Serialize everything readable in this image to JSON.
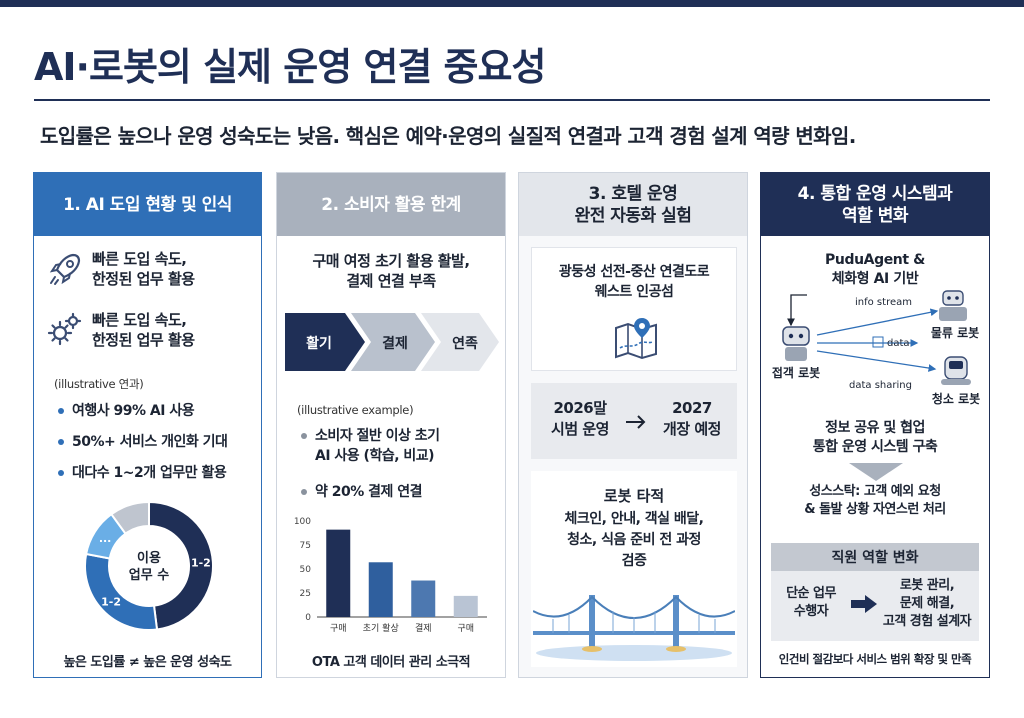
{
  "title": "AI·로봇의 실제 운영 연결 중요성",
  "subtitle": "도입률은 높으나 운영 성숙도는 낮음. 핵심은 예약·운영의 실질적 연결과 고객 경험 설계 역량 변화임.",
  "colors": {
    "navy": "#1f2f56",
    "blue": "#2f6fb7",
    "gray_header": "#a9b1bd",
    "light_header": "#e3e6eb"
  },
  "panels": [
    {
      "header": "1. AI 도입 현황 및 인식",
      "features": [
        {
          "icon": "rocket-icon",
          "text": "빠른 도입 속도,\n한정된 업무 활용"
        },
        {
          "icon": "gears-icon",
          "text": "빠른 도입 속도,\n한정된 업무 활용"
        }
      ],
      "note": "(illustrative 연과)",
      "bullets": [
        "여행사 99% AI 사용",
        "50%+ 서비스 개인화 기대",
        "대다수 1~2개 업무만 활용"
      ],
      "donut_center": "이용\n업무 수",
      "footer": "높은 도입률 ≠ 높은 운영 성숙도"
    },
    {
      "header": "2. 소비자 활용 한계",
      "lead": "구매 여정 초기 활용 활발,\n결제 연결 부족",
      "stages": [
        "활기",
        "결제",
        "연족"
      ],
      "note": "(illustrative example)",
      "bullets": [
        "소비자 절반 이상 초기\nAI 사용 (학습, 비교)",
        "약 20% 결제 연결"
      ],
      "footer": "OTA 고객 데이터 관리 소극적"
    },
    {
      "header": "3. 호텔 운영\n완전 자동화 실험",
      "site": "광둥성 선전-중산 연결도로\n웨스트 인공섬",
      "timeline_from": "2026말\n시범 운영",
      "timeline_to": "2027\n개장 예정",
      "arrow_icon": "right-arrow-icon",
      "scope_title": "로봇 타적",
      "scope_body": "체크인, 안내, 객실 배달,\n청소, 식음 준비 전 과정\n검증"
    },
    {
      "header": "4. 통합 운영 시스템과\n역할 변화",
      "platform": "PuduAgent &\n체화형 AI 기반",
      "labels": {
        "info_stream": "info stream",
        "data": "data",
        "data_sharing": "data sharing",
        "logistics_robot": "물류 로봇",
        "reception_robot": "접객 로봇",
        "cleaning_robot": "청소 로봇"
      },
      "system": "정보 공유 및 협업\n통합 운영 시스템 구축",
      "outcome": "성스스탁: 고객 예외 요청\n& 돌발 상황 자연스런 처리",
      "role_header": "직원 역할 변화",
      "role_from": "단순 업무\n수행자",
      "role_to": "로봇 관리,\n문제 해결,\n고객 경험 설계자",
      "footer": "인건비 절감보다 서비스 범위 확장 및 만족"
    }
  ],
  "chart_data": [
    {
      "type": "pie",
      "title": "",
      "labels": [
        "1-2",
        "1-2",
        "...",
        ""
      ],
      "values": [
        48,
        30,
        12,
        10
      ],
      "colors": [
        "#1f2f56",
        "#2f6fb7",
        "#6aaee6",
        "#bfc5cf"
      ]
    },
    {
      "type": "bar",
      "title": "",
      "categories": [
        "구매",
        "초기 활상",
        "결제",
        "구매"
      ],
      "values": [
        91,
        57,
        38,
        22
      ],
      "ylim": [
        0,
        100
      ],
      "yticks": [
        "100",
        "75",
        "50",
        "25",
        "0"
      ],
      "colors": [
        "#1f2f56",
        "#2f5f9e",
        "#4d78b0",
        "#b9c4d4"
      ]
    }
  ]
}
